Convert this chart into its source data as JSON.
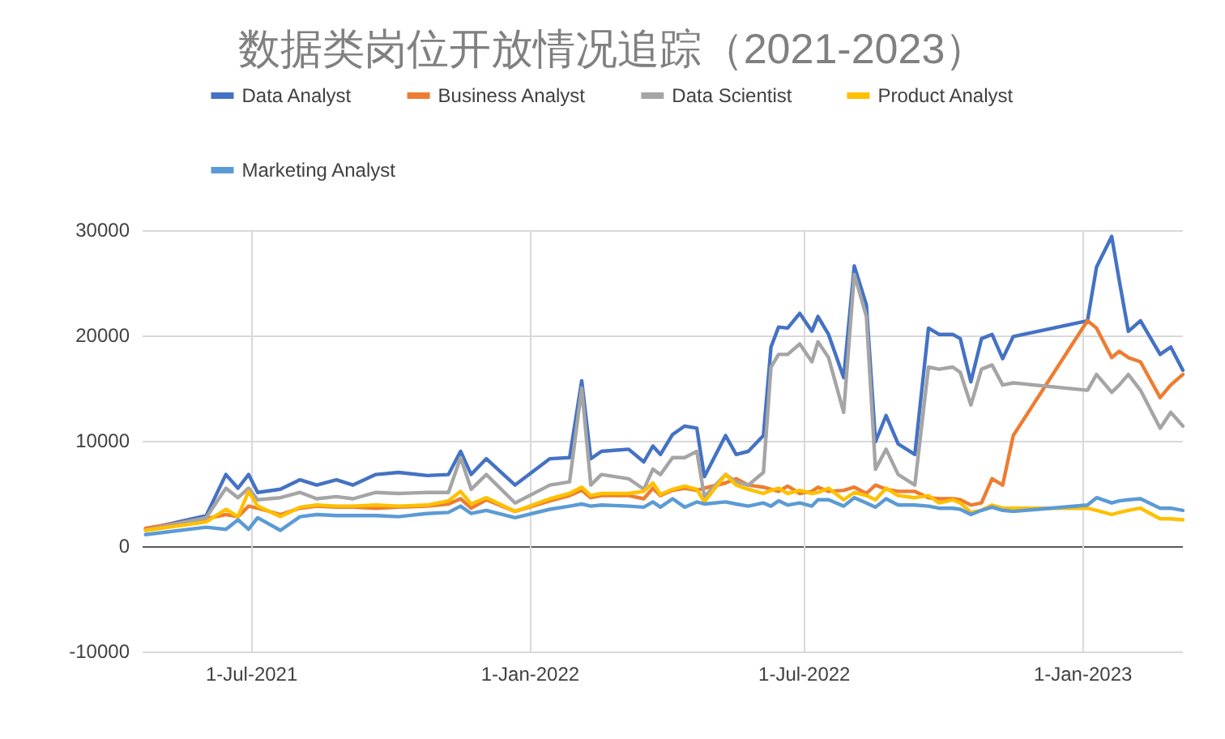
{
  "chart_data": {
    "type": "line",
    "title": "数据类岗位开放情况追踪（2021-2023）",
    "x": [
      "2021-04-22",
      "2021-06-01",
      "2021-06-14",
      "2021-06-22",
      "2021-06-29",
      "2021-07-05",
      "2021-07-20",
      "2021-08-02",
      "2021-08-13",
      "2021-08-26",
      "2021-09-06",
      "2021-09-21",
      "2021-10-06",
      "2021-10-25",
      "2021-11-08",
      "2021-11-16",
      "2021-11-23",
      "2021-12-03",
      "2021-12-22",
      "2022-01-14",
      "2022-01-27",
      "2022-02-04",
      "2022-02-10",
      "2022-02-17",
      "2022-03-07",
      "2022-03-17",
      "2022-03-23",
      "2022-03-28",
      "2022-04-05",
      "2022-04-13",
      "2022-04-21",
      "2022-04-26",
      "2022-05-10",
      "2022-05-17",
      "2022-05-25",
      "2022-06-04",
      "2022-06-09",
      "2022-06-14",
      "2022-06-20",
      "2022-06-28",
      "2022-07-06",
      "2022-07-10",
      "2022-07-17",
      "2022-07-27",
      "2022-08-03",
      "2022-08-11",
      "2022-08-17",
      "2022-08-24",
      "2022-09-01",
      "2022-09-12",
      "2022-09-21",
      "2022-09-28",
      "2022-10-07",
      "2022-10-12",
      "2022-10-19",
      "2022-10-26",
      "2022-11-02",
      "2022-11-09",
      "2022-11-16",
      "2023-01-04",
      "2023-01-10",
      "2023-01-20",
      "2023-01-25",
      "2023-01-31",
      "2023-02-08",
      "2023-02-21",
      "2023-02-28",
      "2023-03-08"
    ],
    "series": [
      {
        "name": "Data Analyst",
        "color": "#4472c4",
        "values": [
          1600,
          2900,
          6800,
          5500,
          6800,
          5100,
          5400,
          6300,
          5800,
          6300,
          5800,
          6800,
          7000,
          6700,
          6800,
          9000,
          6800,
          8300,
          5800,
          8300,
          8400,
          15700,
          8300,
          9000,
          9200,
          8000,
          9500,
          8700,
          10600,
          11400,
          11200,
          6600,
          10500,
          8700,
          9000,
          10500,
          18900,
          20800,
          20700,
          22100,
          20400,
          21800,
          20100,
          16000,
          26600,
          22900,
          9900,
          12400,
          9700,
          8700,
          20700,
          20100,
          20100,
          19700,
          15600,
          19700,
          20100,
          17800,
          19900,
          21400,
          26500,
          29400,
          25200,
          20400,
          21400,
          18200,
          18900,
          16700
        ]
      },
      {
        "name": "Business Analyst",
        "color": "#ed7d31",
        "values": [
          1700,
          2600,
          3000,
          2800,
          3800,
          3600,
          3000,
          3600,
          3800,
          3700,
          3700,
          3600,
          3700,
          3800,
          4000,
          4500,
          3600,
          4400,
          3300,
          4300,
          4800,
          5300,
          4600,
          4800,
          4800,
          4500,
          5500,
          4800,
          5300,
          5500,
          5300,
          5500,
          6000,
          6400,
          5800,
          5600,
          5400,
          5200,
          5700,
          5000,
          5200,
          5600,
          5200,
          5300,
          5600,
          5000,
          5800,
          5400,
          5200,
          5200,
          4600,
          4500,
          4500,
          4400,
          3900,
          4100,
          6400,
          5800,
          10500,
          21400,
          20700,
          17900,
          18500,
          17900,
          17500,
          14100,
          15300,
          16300
        ]
      },
      {
        "name": "Data Scientist",
        "color": "#a5a5a5",
        "values": [
          1500,
          2700,
          5500,
          4600,
          5500,
          4400,
          4600,
          5100,
          4500,
          4700,
          4500,
          5100,
          5000,
          5100,
          5100,
          8400,
          5400,
          6800,
          4100,
          5800,
          6100,
          15000,
          5800,
          6800,
          6400,
          5400,
          7300,
          6800,
          8400,
          8400,
          9000,
          4700,
          6800,
          6100,
          5800,
          7000,
          17000,
          18200,
          18200,
          19200,
          17500,
          19400,
          17900,
          12700,
          25800,
          21800,
          7300,
          9200,
          6800,
          5800,
          17000,
          16800,
          17000,
          16500,
          13400,
          16800,
          17200,
          15300,
          15500,
          14800,
          16300,
          14600,
          15300,
          16300,
          14800,
          11200,
          12700,
          11400
        ]
      },
      {
        "name": "Product Analyst",
        "color": "#ffc000",
        "values": [
          1500,
          2300,
          3500,
          2800,
          5200,
          3800,
          2800,
          3700,
          3900,
          3800,
          3800,
          3900,
          3800,
          3900,
          4300,
          5200,
          4000,
          4600,
          3300,
          4500,
          5000,
          5600,
          4800,
          5000,
          5000,
          5200,
          6000,
          4900,
          5400,
          5700,
          5400,
          4200,
          6800,
          5800,
          5400,
          5000,
          5300,
          5500,
          5000,
          5300,
          5000,
          5100,
          5500,
          4400,
          5100,
          4800,
          4400,
          5500,
          4800,
          4600,
          4800,
          4100,
          4400,
          4100,
          3200,
          3400,
          3900,
          3600,
          3600,
          3600,
          3400,
          3000,
          3200,
          3400,
          3600,
          2600,
          2600,
          2500
        ]
      },
      {
        "name": "Marketing Analyst",
        "color": "#5b9bd5",
        "values": [
          1100,
          1800,
          1600,
          2500,
          1600,
          2700,
          1500,
          2800,
          3000,
          2900,
          2900,
          2900,
          2800,
          3100,
          3200,
          3800,
          3100,
          3400,
          2700,
          3500,
          3800,
          4000,
          3800,
          3900,
          3800,
          3700,
          4200,
          3700,
          4500,
          3700,
          4200,
          4000,
          4200,
          4000,
          3800,
          4100,
          3800,
          4300,
          3900,
          4100,
          3800,
          4400,
          4400,
          3800,
          4600,
          4100,
          3700,
          4500,
          3900,
          3900,
          3800,
          3600,
          3600,
          3500,
          3000,
          3400,
          3700,
          3400,
          3300,
          3900,
          4600,
          4100,
          4300,
          4400,
          4500,
          3600,
          3600,
          3400
        ]
      }
    ],
    "xlim": [
      "2021-04-20",
      "2023-03-08"
    ],
    "xticks": [
      {
        "value": "2021-07-01",
        "label": "1-Jul-2021"
      },
      {
        "value": "2022-01-01",
        "label": "1-Jan-2022"
      },
      {
        "value": "2022-07-01",
        "label": "1-Jul-2022"
      },
      {
        "value": "2023-01-01",
        "label": "1-Jan-2023"
      }
    ],
    "ylim": [
      -10000,
      30000
    ],
    "yticks": [
      -10000,
      0,
      10000,
      20000,
      30000
    ],
    "grid": true,
    "legend": "top",
    "marker": "none",
    "line_style": "solid"
  }
}
